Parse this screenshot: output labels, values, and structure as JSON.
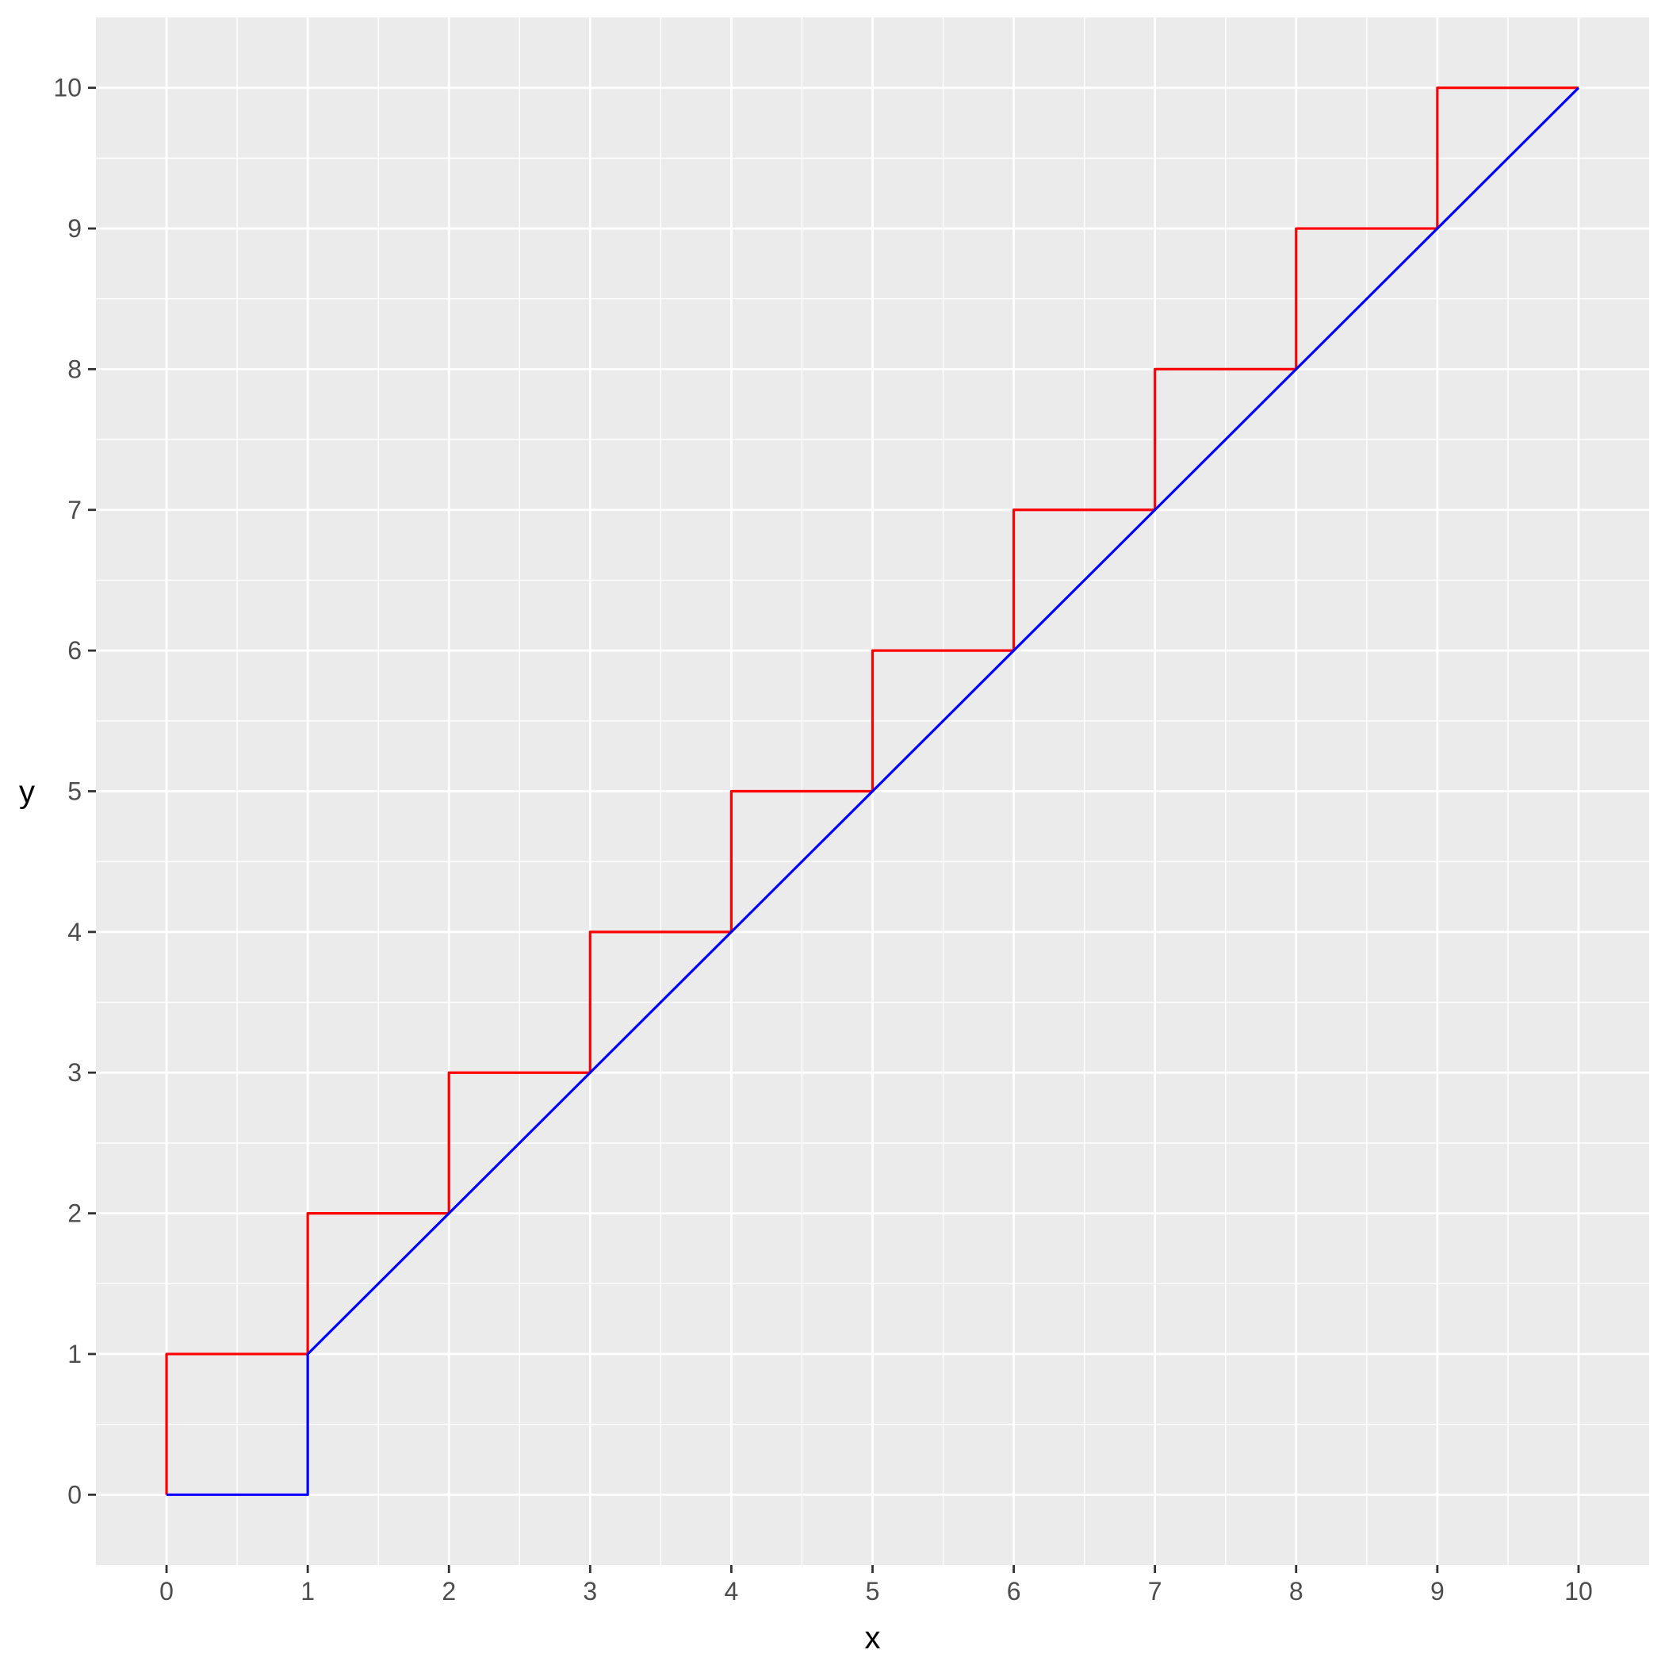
{
  "chart_data": {
    "type": "line",
    "xlabel": "x",
    "ylabel": "y",
    "xlim": [
      -0.5,
      10.5
    ],
    "ylim": [
      -0.5,
      10.5
    ],
    "x_ticks": [
      0,
      1,
      2,
      3,
      4,
      5,
      6,
      7,
      8,
      9,
      10
    ],
    "y_ticks": [
      0,
      1,
      2,
      3,
      4,
      5,
      6,
      7,
      8,
      9,
      10
    ],
    "x_tick_labels": [
      "0",
      "1",
      "2",
      "3",
      "4",
      "5",
      "6",
      "7",
      "8",
      "9",
      "10"
    ],
    "y_tick_labels": [
      "0",
      "1",
      "2",
      "3",
      "4",
      "5",
      "6",
      "7",
      "8",
      "9",
      "10"
    ],
    "grid": true,
    "legend": "none",
    "series": [
      {
        "color": "#ff0000",
        "points": [
          [
            0,
            0
          ],
          [
            0,
            1
          ],
          [
            1,
            1
          ],
          [
            1,
            2
          ],
          [
            2,
            2
          ],
          [
            2,
            3
          ],
          [
            3,
            3
          ],
          [
            3,
            4
          ],
          [
            4,
            4
          ],
          [
            4,
            5
          ],
          [
            5,
            5
          ],
          [
            5,
            6
          ],
          [
            6,
            6
          ],
          [
            6,
            7
          ],
          [
            7,
            7
          ],
          [
            7,
            8
          ],
          [
            8,
            8
          ],
          [
            8,
            9
          ],
          [
            9,
            9
          ],
          [
            9,
            10
          ],
          [
            10,
            10
          ]
        ]
      },
      {
        "color": "#0000ff",
        "points": [
          [
            0,
            0
          ],
          [
            1,
            0
          ],
          [
            1,
            1
          ],
          [
            10,
            10
          ]
        ]
      }
    ]
  }
}
